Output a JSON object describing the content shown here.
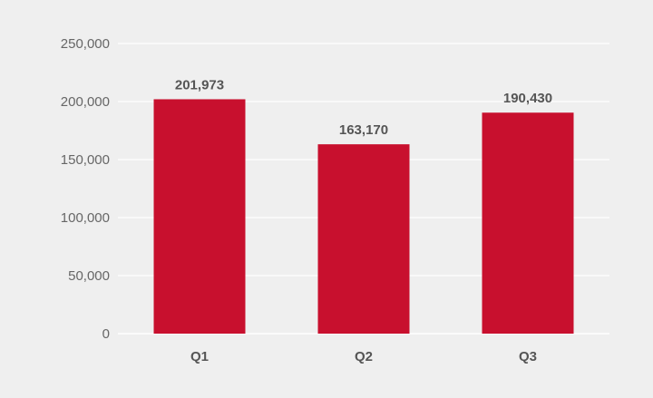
{
  "chart_data": {
    "type": "bar",
    "categories": [
      "Q1",
      "Q2",
      "Q3"
    ],
    "values": [
      201973,
      163170,
      190430
    ],
    "value_labels": [
      "201,973",
      "163,170",
      "190,430"
    ],
    "y_ticks": [
      0,
      50000,
      100000,
      150000,
      200000,
      250000
    ],
    "y_tick_labels": [
      "0",
      "50,000",
      "100,000",
      "150,000",
      "200,000",
      "250,000"
    ],
    "ylim": [
      0,
      250000
    ],
    "grid": true,
    "legend": "none",
    "bar_color": "#c8102e",
    "background_color": "#efefef"
  }
}
